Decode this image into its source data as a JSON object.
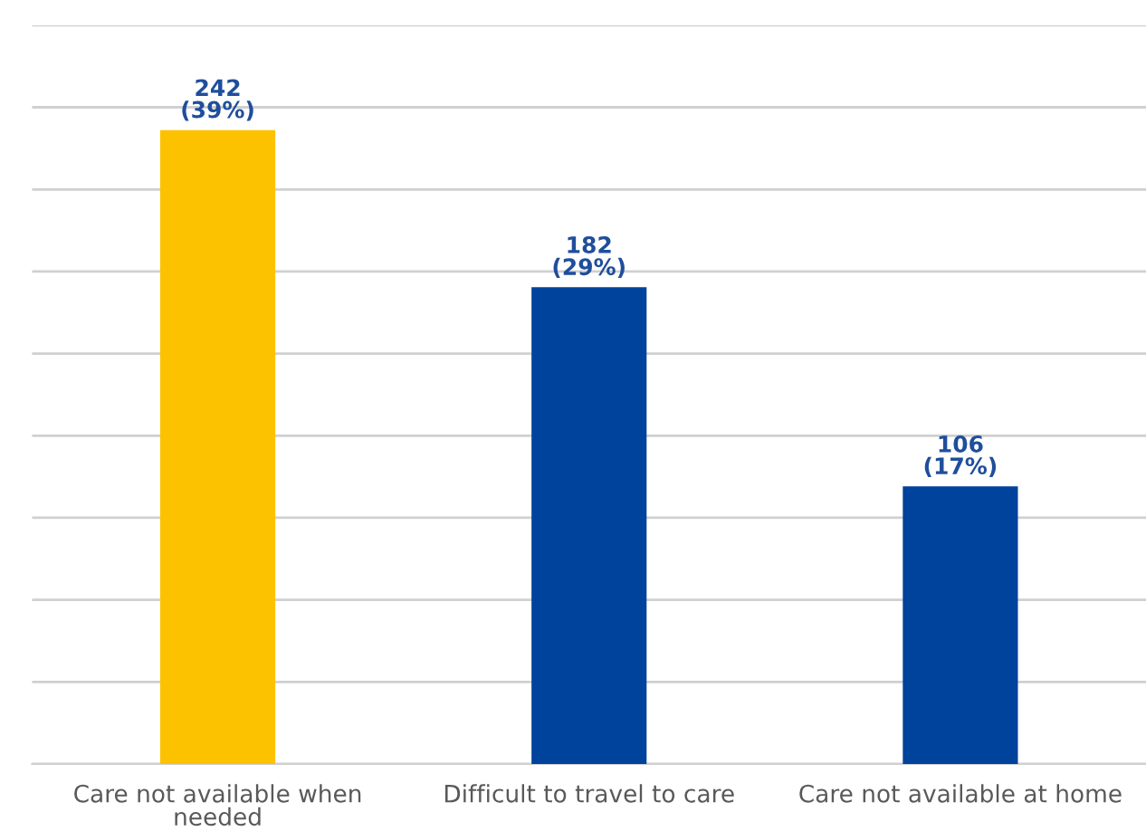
{
  "chart_data": {
    "type": "bar",
    "categories": [
      "Care not available when\nneeded",
      "Difficult to travel to care",
      "Care not available at home"
    ],
    "values": [
      242,
      182,
      106
    ],
    "colors": [
      "#fcc200",
      "#00439c",
      "#00439c"
    ],
    "value_labels": [
      "242\n(39%)",
      "182\n(29%)",
      "106\n(17%)"
    ],
    "ylim": [
      0,
      282
    ],
    "yticks": [
      {
        "value": 0,
        "label": null
      },
      {
        "value": 31.3,
        "label": null
      },
      {
        "value": 62.7,
        "label": null
      },
      {
        "value": 94,
        "label": null
      },
      {
        "value": 125.3,
        "label": null
      },
      {
        "value": 156.7,
        "label": null
      },
      {
        "value": 188,
        "label": null
      },
      {
        "value": 219.3,
        "label": null
      },
      {
        "value": 250.7,
        "label": null
      },
      {
        "value": 282,
        "label": null
      }
    ],
    "grid": "y",
    "tick_labels": "x",
    "legend": false
  }
}
